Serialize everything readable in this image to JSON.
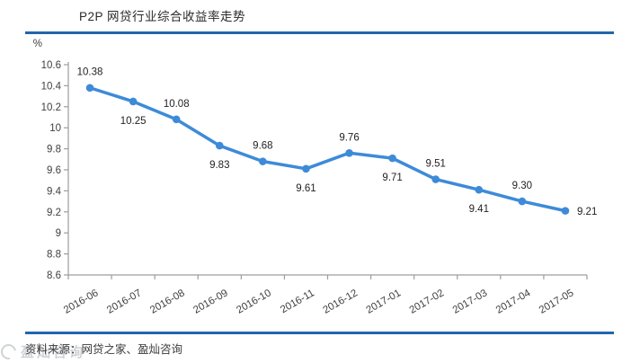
{
  "header": {
    "title": "P2P 网贷行业综合收益率走势",
    "rule_color": "#2166ac"
  },
  "footer": {
    "source_text": "资料来源：网贷之家、盈灿咨询",
    "watermark_text": "盈灿咨询"
  },
  "chart_data": {
    "type": "line",
    "title": "P2P 网贷行业综合收益率走势",
    "unit_label": "%",
    "categories": [
      "2016-06",
      "2016-07",
      "2016-08",
      "2016-09",
      "2016-10",
      "2016-11",
      "2016-12",
      "2017-01",
      "2017-02",
      "2017-03",
      "2017-04",
      "2017-05"
    ],
    "values": [
      10.38,
      10.25,
      10.08,
      9.83,
      9.68,
      9.61,
      9.76,
      9.71,
      9.51,
      9.41,
      9.3,
      9.21
    ],
    "data_labels": [
      "10.38",
      "10.25",
      "10.08",
      "9.83",
      "9.68",
      "9.61",
      "9.76",
      "9.71",
      "9.51",
      "9.41",
      "9.30",
      "9.21"
    ],
    "label_positions": [
      "above",
      "below",
      "above",
      "below",
      "above",
      "below",
      "above",
      "below",
      "above",
      "below",
      "above",
      "right"
    ],
    "ylim": [
      8.6,
      10.6
    ],
    "ytick_step": 0.2,
    "ytick_labels": [
      "10.6",
      "10.4",
      "10.2",
      "10",
      "9.8",
      "9.6",
      "9.4",
      "9.2",
      "9",
      "8.8",
      "8.6"
    ],
    "xlabel": "",
    "ylabel": "%",
    "grid": false,
    "legend": false,
    "line_color": "#3d8bd8",
    "marker_color": "#3d8bd8",
    "axis_color": "#9d9d9d",
    "tick_label_color": "#3f3f3f",
    "data_label_color": "#1f1f1f"
  }
}
